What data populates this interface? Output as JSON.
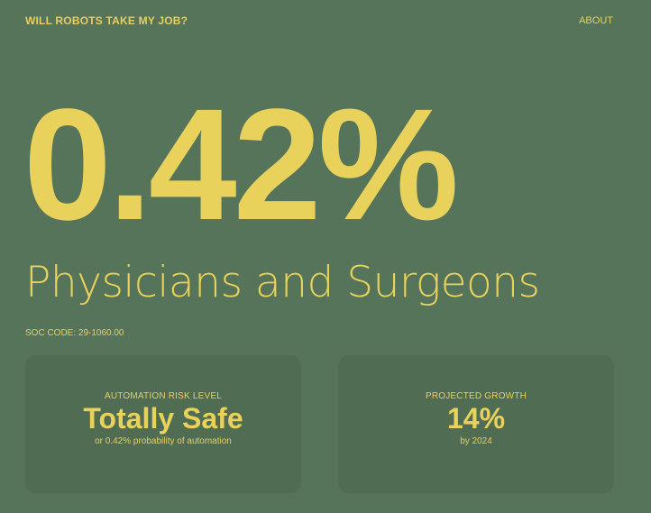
{
  "header": {
    "site_title": "WILL ROBOTS TAKE MY JOB?",
    "nav_about": "ABOUT"
  },
  "hero": {
    "probability": "0.42%",
    "occupation": "Physicians and Surgeons",
    "soc_code": "SOC CODE: 29-1060.00"
  },
  "cards": {
    "risk": {
      "label": "AUTOMATION RISK LEVEL",
      "value": "Totally Safe",
      "sub": "or 0.42% probability of automation"
    },
    "growth": {
      "label": "PROJECTED GROWTH",
      "value": "14%",
      "sub": "by 2024"
    }
  },
  "colors": {
    "background": "#56745a",
    "card_background": "#506d53",
    "accent": "#e8d25c"
  }
}
